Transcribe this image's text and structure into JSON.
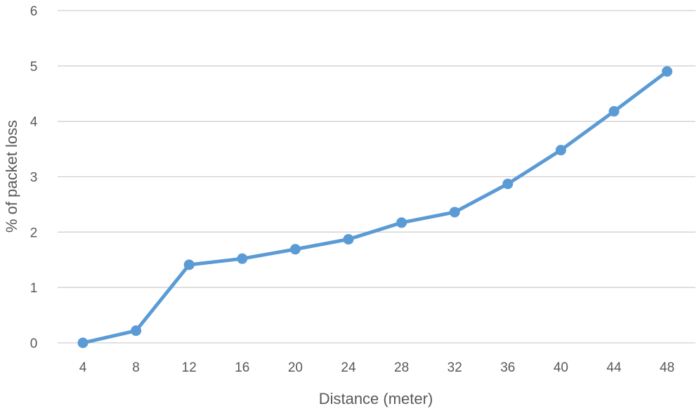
{
  "chart_data": {
    "type": "line",
    "title": "",
    "xlabel": "Distance (meter)",
    "ylabel": "% of packet loss",
    "categories": [
      "4",
      "8",
      "12",
      "16",
      "20",
      "24",
      "28",
      "32",
      "36",
      "40",
      "44",
      "48"
    ],
    "series": [
      {
        "values": [
          0.0,
          0.22,
          1.41,
          1.52,
          1.69,
          1.87,
          2.17,
          2.36,
          2.87,
          3.48,
          4.18,
          4.9
        ],
        "color": "#5b9bd5"
      }
    ],
    "ylim": [
      0,
      6
    ],
    "yticks": [
      "0",
      "1",
      "2",
      "3",
      "4",
      "5",
      "6"
    ],
    "grid": true,
    "legend": "none"
  }
}
